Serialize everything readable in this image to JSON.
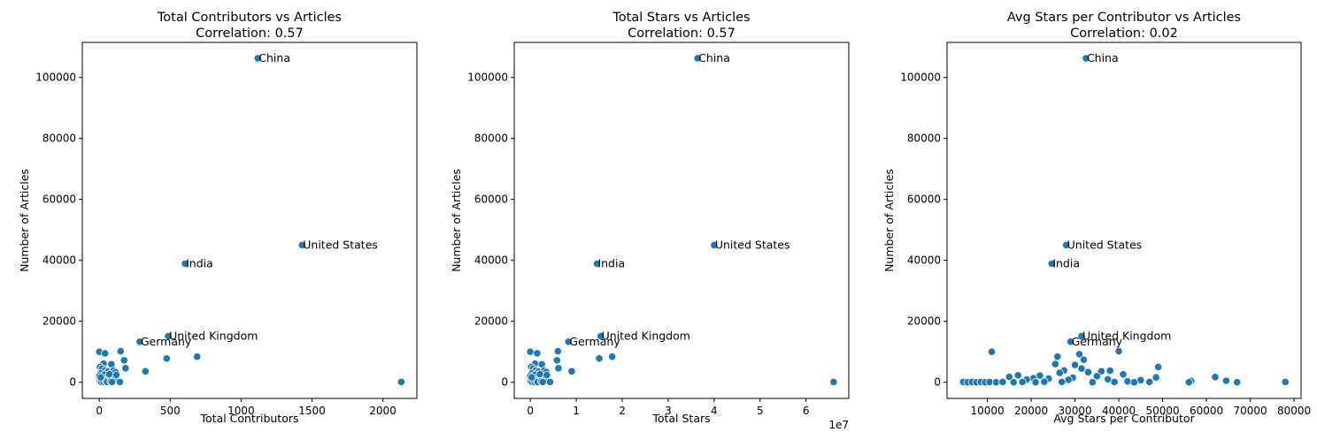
{
  "chart_data": [
    {
      "type": "scatter",
      "title": "Total Contributors vs Articles",
      "subtitle": "Correlation: 0.57",
      "xlabel": "Total Contributors",
      "ylabel": "Number of Articles",
      "xlim": [
        -120,
        2240
      ],
      "ylim": [
        -5300,
        111500
      ],
      "xticks": [
        0,
        500,
        1000,
        1500,
        2000
      ],
      "xtick_labels": [
        "0",
        "500",
        "1000",
        "1500",
        "2000"
      ],
      "xexponent": "",
      "yticks": [
        0,
        20000,
        40000,
        60000,
        80000,
        100000
      ],
      "ytick_labels": [
        "0",
        "20000",
        "40000",
        "60000",
        "80000",
        "100000"
      ],
      "color": "#1f77b4",
      "grid": false,
      "points": [
        {
          "x": 1118,
          "y": 106300
        },
        {
          "x": 1430,
          "y": 45000
        },
        {
          "x": 605,
          "y": 38900
        },
        {
          "x": 486,
          "y": 15100
        },
        {
          "x": 285,
          "y": 13300
        },
        {
          "x": 690,
          "y": 8400
        },
        {
          "x": 475,
          "y": 7800
        },
        {
          "x": 2130,
          "y": 100
        },
        {
          "x": 325,
          "y": 3600
        },
        {
          "x": 150,
          "y": 10200
        },
        {
          "x": 175,
          "y": 7200
        },
        {
          "x": 185,
          "y": 4600
        },
        {
          "x": 0,
          "y": 10000
        },
        {
          "x": 40,
          "y": 9500
        },
        {
          "x": 30,
          "y": 6100
        },
        {
          "x": 85,
          "y": 5900
        },
        {
          "x": 5,
          "y": 5000
        },
        {
          "x": 20,
          "y": 4500
        },
        {
          "x": 40,
          "y": 3900
        },
        {
          "x": 60,
          "y": 3500
        },
        {
          "x": 100,
          "y": 3800
        },
        {
          "x": 115,
          "y": 3300
        },
        {
          "x": 10,
          "y": 2900
        },
        {
          "x": 35,
          "y": 2500
        },
        {
          "x": 75,
          "y": 2200
        },
        {
          "x": 95,
          "y": 1800
        },
        {
          "x": 50,
          "y": 1500
        },
        {
          "x": 0,
          "y": 1200
        },
        {
          "x": 25,
          "y": 900
        },
        {
          "x": 65,
          "y": 700
        },
        {
          "x": 110,
          "y": 1500
        },
        {
          "x": 130,
          "y": 600
        },
        {
          "x": 145,
          "y": 100
        },
        {
          "x": 5,
          "y": 300
        },
        {
          "x": 15,
          "y": 100
        },
        {
          "x": 30,
          "y": 200
        },
        {
          "x": 45,
          "y": 500
        },
        {
          "x": 55,
          "y": 100
        },
        {
          "x": 80,
          "y": 300
        },
        {
          "x": 90,
          "y": 100
        },
        {
          "x": 0,
          "y": 2000
        },
        {
          "x": 10,
          "y": 1600
        },
        {
          "x": 70,
          "y": 2700
        },
        {
          "x": 120,
          "y": 2400
        }
      ],
      "annotations": [
        {
          "text": "China",
          "x": 1118,
          "y": 106300
        },
        {
          "text": "United States",
          "x": 1430,
          "y": 45000
        },
        {
          "text": "India",
          "x": 605,
          "y": 38900
        },
        {
          "text": "United Kingdom",
          "x": 486,
          "y": 15100
        },
        {
          "text": "Germany",
          "x": 285,
          "y": 13300
        }
      ]
    },
    {
      "type": "scatter",
      "title": "Total Stars vs Articles",
      "subtitle": "Correlation: 0.57",
      "xlabel": "Total Stars",
      "ylabel": "Number of Articles",
      "xlim": [
        -3500000,
        69300000
      ],
      "ylim": [
        -5300,
        111500
      ],
      "xticks": [
        0,
        10000000,
        20000000,
        30000000,
        40000000,
        50000000,
        60000000
      ],
      "xtick_labels": [
        "0",
        "1",
        "2",
        "3",
        "4",
        "5",
        "6"
      ],
      "xexponent": "1e7",
      "yticks": [
        0,
        20000,
        40000,
        60000,
        80000,
        100000
      ],
      "ytick_labels": [
        "0",
        "20000",
        "40000",
        "60000",
        "80000",
        "100000"
      ],
      "color": "#1f77b4",
      "grid": false,
      "points": [
        {
          "x": 36400000,
          "y": 106300
        },
        {
          "x": 40000000,
          "y": 45000
        },
        {
          "x": 14500000,
          "y": 38900
        },
        {
          "x": 15300000,
          "y": 15100
        },
        {
          "x": 8300000,
          "y": 13300
        },
        {
          "x": 17800000,
          "y": 8400
        },
        {
          "x": 15000000,
          "y": 7800
        },
        {
          "x": 66000000,
          "y": 100
        },
        {
          "x": 9000000,
          "y": 3600
        },
        {
          "x": 6000000,
          "y": 10200
        },
        {
          "x": 5800000,
          "y": 7200
        },
        {
          "x": 6100000,
          "y": 4600
        },
        {
          "x": 0,
          "y": 10000
        },
        {
          "x": 1500000,
          "y": 9500
        },
        {
          "x": 1000000,
          "y": 6100
        },
        {
          "x": 2500000,
          "y": 5900
        },
        {
          "x": 200000,
          "y": 5000
        },
        {
          "x": 600000,
          "y": 4500
        },
        {
          "x": 1200000,
          "y": 3900
        },
        {
          "x": 1800000,
          "y": 3500
        },
        {
          "x": 3000000,
          "y": 3800
        },
        {
          "x": 3500000,
          "y": 3300
        },
        {
          "x": 300000,
          "y": 2900
        },
        {
          "x": 1000000,
          "y": 2500
        },
        {
          "x": 2200000,
          "y": 2200
        },
        {
          "x": 2800000,
          "y": 1800
        },
        {
          "x": 1500000,
          "y": 1500
        },
        {
          "x": 0,
          "y": 1200
        },
        {
          "x": 700000,
          "y": 900
        },
        {
          "x": 1900000,
          "y": 700
        },
        {
          "x": 3300000,
          "y": 1500
        },
        {
          "x": 3900000,
          "y": 600
        },
        {
          "x": 4300000,
          "y": 100
        },
        {
          "x": 100000,
          "y": 300
        },
        {
          "x": 400000,
          "y": 100
        },
        {
          "x": 900000,
          "y": 200
        },
        {
          "x": 1300000,
          "y": 500
        },
        {
          "x": 1600000,
          "y": 100
        },
        {
          "x": 2400000,
          "y": 300
        },
        {
          "x": 2700000,
          "y": 100
        },
        {
          "x": 0,
          "y": 2000
        },
        {
          "x": 300000,
          "y": 1600
        },
        {
          "x": 2100000,
          "y": 2700
        },
        {
          "x": 3600000,
          "y": 2400
        }
      ],
      "annotations": [
        {
          "text": "China",
          "x": 36400000,
          "y": 106300
        },
        {
          "text": "United States",
          "x": 40000000,
          "y": 45000
        },
        {
          "text": "India",
          "x": 14500000,
          "y": 38900
        },
        {
          "text": "United Kingdom",
          "x": 15300000,
          "y": 15100
        },
        {
          "text": "Germany",
          "x": 8300000,
          "y": 13300
        }
      ]
    },
    {
      "type": "scatter",
      "title": "Avg Stars per Contributor vs Articles",
      "subtitle": "Correlation: 0.02",
      "xlabel": "Avg Stars per Contributor",
      "ylabel": "Number of Articles",
      "xlim": [
        800,
        81600
      ],
      "ylim": [
        -5300,
        111500
      ],
      "xticks": [
        10000,
        20000,
        30000,
        40000,
        50000,
        60000,
        70000,
        80000
      ],
      "xtick_labels": [
        "10000",
        "20000",
        "30000",
        "40000",
        "50000",
        "60000",
        "70000",
        "80000"
      ],
      "xexponent": "",
      "yticks": [
        0,
        20000,
        40000,
        60000,
        80000,
        100000
      ],
      "ytick_labels": [
        "0",
        "20000",
        "40000",
        "60000",
        "80000",
        "100000"
      ],
      "color": "#1f77b4",
      "grid": false,
      "points": [
        {
          "x": 32500,
          "y": 106300
        },
        {
          "x": 28000,
          "y": 45000
        },
        {
          "x": 24700,
          "y": 38900
        },
        {
          "x": 31500,
          "y": 15100
        },
        {
          "x": 29000,
          "y": 13300
        },
        {
          "x": 26000,
          "y": 8400
        },
        {
          "x": 31000,
          "y": 9200
        },
        {
          "x": 11000,
          "y": 10000
        },
        {
          "x": 40000,
          "y": 10200
        },
        {
          "x": 32000,
          "y": 7400
        },
        {
          "x": 25500,
          "y": 6000
        },
        {
          "x": 30000,
          "y": 5700
        },
        {
          "x": 49000,
          "y": 5000
        },
        {
          "x": 31500,
          "y": 4500
        },
        {
          "x": 27500,
          "y": 3900
        },
        {
          "x": 36000,
          "y": 3600
        },
        {
          "x": 38000,
          "y": 3800
        },
        {
          "x": 33000,
          "y": 3300
        },
        {
          "x": 26500,
          "y": 3100
        },
        {
          "x": 41000,
          "y": 2600
        },
        {
          "x": 22000,
          "y": 2200
        },
        {
          "x": 17000,
          "y": 2300
        },
        {
          "x": 35000,
          "y": 2000
        },
        {
          "x": 15000,
          "y": 1800
        },
        {
          "x": 48500,
          "y": 1600
        },
        {
          "x": 62000,
          "y": 1700
        },
        {
          "x": 29500,
          "y": 1500
        },
        {
          "x": 20500,
          "y": 1300
        },
        {
          "x": 24000,
          "y": 1200
        },
        {
          "x": 37500,
          "y": 1000
        },
        {
          "x": 19000,
          "y": 900
        },
        {
          "x": 28500,
          "y": 800
        },
        {
          "x": 45000,
          "y": 700
        },
        {
          "x": 64500,
          "y": 500
        },
        {
          "x": 56500,
          "y": 400
        },
        {
          "x": 42000,
          "y": 300
        },
        {
          "x": 4500,
          "y": 100
        },
        {
          "x": 5500,
          "y": 0
        },
        {
          "x": 6500,
          "y": 100
        },
        {
          "x": 7500,
          "y": 0
        },
        {
          "x": 8500,
          "y": 100
        },
        {
          "x": 9500,
          "y": 0
        },
        {
          "x": 10500,
          "y": 100
        },
        {
          "x": 12000,
          "y": 0
        },
        {
          "x": 13500,
          "y": 100
        },
        {
          "x": 16000,
          "y": 0
        },
        {
          "x": 18000,
          "y": 100
        },
        {
          "x": 21000,
          "y": 0
        },
        {
          "x": 23000,
          "y": 200
        },
        {
          "x": 27000,
          "y": 100
        },
        {
          "x": 34000,
          "y": 0
        },
        {
          "x": 39000,
          "y": 100
        },
        {
          "x": 43500,
          "y": 0
        },
        {
          "x": 47000,
          "y": 100
        },
        {
          "x": 56000,
          "y": 0
        },
        {
          "x": 67000,
          "y": 0
        },
        {
          "x": 78000,
          "y": 100
        }
      ],
      "annotations": [
        {
          "text": "China",
          "x": 32500,
          "y": 106300
        },
        {
          "text": "United States",
          "x": 28000,
          "y": 45000
        },
        {
          "text": "India",
          "x": 24700,
          "y": 38900
        },
        {
          "text": "United Kingdom",
          "x": 31500,
          "y": 15100
        },
        {
          "text": "Germany",
          "x": 29000,
          "y": 13300
        }
      ]
    }
  ]
}
